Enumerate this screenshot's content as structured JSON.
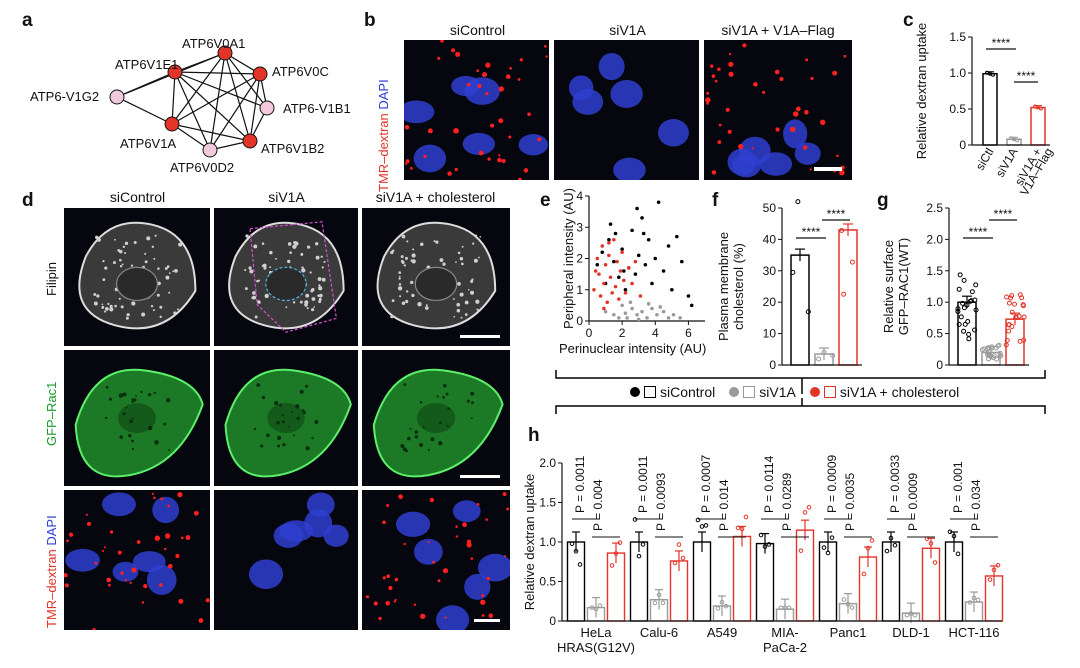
{
  "panels": {
    "a": {
      "label": "a",
      "nodes": [
        {
          "name": "ATP6V0A1",
          "kind": "core"
        },
        {
          "name": "ATP6V1E1",
          "kind": "core"
        },
        {
          "name": "ATP6V0C",
          "kind": "core"
        },
        {
          "name": "ATP6-V1G2",
          "kind": "peripheral"
        },
        {
          "name": "ATP6-V1B1",
          "kind": "peripheral"
        },
        {
          "name": "ATP6V1A",
          "kind": "core"
        },
        {
          "name": "ATP6V1B2",
          "kind": "core"
        },
        {
          "name": "ATP6V0D2",
          "kind": "peripheral"
        }
      ],
      "colors": {
        "core": "#e3342a",
        "peripheral": "#f2c9dc"
      }
    },
    "b": {
      "label": "b",
      "columns": [
        "siControl",
        "siV1A",
        "siV1A + V1A–Flag"
      ],
      "side_label_red": "TMR–dextran",
      "side_label_blue": "DAPI"
    },
    "c": {
      "label": "c"
    },
    "d": {
      "label": "d",
      "columns": [
        "siControl",
        "siV1A",
        "siV1A + cholesterol"
      ],
      "rows": [
        {
          "label": "Filipin",
          "color": "#222222"
        },
        {
          "label": "GFP–Rac1",
          "color": "#1a9a2a"
        },
        {
          "label_red": "TMR–dextran",
          "label_blue": "DAPI"
        }
      ]
    },
    "e": {
      "label": "e"
    },
    "f": {
      "label": "f"
    },
    "g": {
      "label": "g"
    },
    "h": {
      "label": "h"
    }
  },
  "legend": {
    "items": [
      {
        "label": "siControl",
        "color": "#000000"
      },
      {
        "label": "siV1A",
        "color": "#9a9a9a"
      },
      {
        "label": "siV1A + cholesterol",
        "color": "#e3342a"
      }
    ]
  },
  "chart_data": [
    {
      "id": "c",
      "type": "bar",
      "ylabel": "Relative dextran uptake",
      "ylim": [
        0,
        1.5
      ],
      "yticks": [
        "0",
        "0.5",
        "1.0",
        "1.5"
      ],
      "categories": [
        "siCtl",
        "siV1A",
        "siV1A +\nV1A–Flag"
      ],
      "values": [
        0.99,
        0.08,
        0.52
      ],
      "colors": [
        "#000000",
        "#9a9a9a",
        "#e3342a"
      ],
      "significance": [
        "****",
        "****"
      ]
    },
    {
      "id": "e",
      "type": "scatter",
      "xlabel": "Perinuclear intensity (AU)",
      "ylabel": "Peripheral intensity (AU)",
      "xlim": [
        0,
        7
      ],
      "ylim": [
        0,
        4
      ],
      "xticks": [
        "0",
        "2",
        "4",
        "6"
      ],
      "yticks": [
        "0",
        "1",
        "2",
        "3",
        "4"
      ],
      "series": [
        {
          "color": "#000000",
          "points": [
            [
              0.5,
              1.8
            ],
            [
              0.8,
              2.2
            ],
            [
              1.0,
              1.2
            ],
            [
              1.2,
              2.6
            ],
            [
              1.5,
              1.9
            ],
            [
              1.8,
              1.4
            ],
            [
              2.0,
              2.3
            ],
            [
              2.2,
              1.0
            ],
            [
              2.4,
              1.7
            ],
            [
              2.6,
              2.9
            ],
            [
              2.8,
              1.5
            ],
            [
              3.0,
              2.1
            ],
            [
              3.2,
              3.3
            ],
            [
              3.4,
              1.8
            ],
            [
              3.6,
              2.6
            ],
            [
              3.8,
              1.2
            ],
            [
              4.0,
              2.0
            ],
            [
              4.2,
              3.8
            ],
            [
              4.5,
              1.6
            ],
            [
              4.8,
              2.4
            ],
            [
              5.0,
              1.0
            ],
            [
              5.3,
              2.7
            ],
            [
              5.6,
              1.9
            ],
            [
              6.0,
              0.8
            ],
            [
              6.2,
              0.5
            ],
            [
              1.3,
              3.1
            ],
            [
              2.9,
              3.6
            ],
            [
              3.3,
              2.8
            ],
            [
              2.1,
              1.6
            ],
            [
              1.6,
              2.8
            ]
          ]
        },
        {
          "color": "#9a9a9a",
          "points": [
            [
              1.0,
              0.3
            ],
            [
              1.5,
              0.2
            ],
            [
              2.0,
              0.5
            ],
            [
              2.3,
              0.1
            ],
            [
              2.6,
              0.4
            ],
            [
              2.9,
              0.2
            ],
            [
              3.2,
              0.3
            ],
            [
              3.5,
              0.1
            ],
            [
              3.8,
              0.4
            ],
            [
              4.1,
              0.2
            ],
            [
              4.5,
              0.3
            ],
            [
              4.8,
              0.1
            ],
            [
              5.1,
              0.2
            ],
            [
              5.5,
              0.1
            ],
            [
              2.5,
              0.6
            ],
            [
              3.0,
              0.05
            ],
            [
              1.8,
              0.1
            ],
            [
              4.3,
              0.45
            ],
            [
              3.6,
              0.55
            ],
            [
              2.2,
              0.25
            ]
          ]
        },
        {
          "color": "#e3342a",
          "points": [
            [
              0.3,
              1.0
            ],
            [
              0.5,
              2.0
            ],
            [
              0.6,
              1.5
            ],
            [
              0.7,
              0.8
            ],
            [
              0.8,
              2.4
            ],
            [
              0.9,
              1.2
            ],
            [
              1.0,
              1.8
            ],
            [
              1.1,
              0.6
            ],
            [
              1.2,
              2.1
            ],
            [
              1.3,
              1.4
            ],
            [
              1.4,
              0.9
            ],
            [
              1.5,
              2.6
            ],
            [
              1.6,
              1.1
            ],
            [
              1.7,
              1.9
            ],
            [
              1.8,
              0.7
            ],
            [
              1.9,
              1.6
            ],
            [
              2.0,
              2.2
            ],
            [
              2.1,
              1.3
            ],
            [
              2.2,
              0.9
            ],
            [
              2.4,
              1.7
            ],
            [
              2.6,
              1.2
            ],
            [
              2.8,
              1.9
            ],
            [
              3.1,
              0.8
            ],
            [
              0.4,
              1.6
            ],
            [
              1.2,
              2.5
            ],
            [
              0.9,
              0.4
            ]
          ]
        }
      ]
    },
    {
      "id": "f",
      "type": "bar",
      "ylabel": "Plasma membrane\ncholesterol (%)",
      "ylim": [
        0,
        50
      ],
      "yticks": [
        "0",
        "10",
        "20",
        "30",
        "40",
        "50"
      ],
      "categories": [
        "siControl",
        "siV1A",
        "siV1A + cholesterol"
      ],
      "values": [
        35,
        3.5,
        43
      ],
      "colors": [
        "#000000",
        "#9a9a9a",
        "#e3342a"
      ],
      "significance": [
        "****",
        "****"
      ]
    },
    {
      "id": "g",
      "type": "bar",
      "ylabel": "Relative surface\nGFP–RAC1(WT)",
      "ylim": [
        0,
        2.5
      ],
      "yticks": [
        "0",
        "0.5",
        "1.0",
        "1.5",
        "2.0",
        "2.5"
      ],
      "categories": [
        "siControl",
        "siV1A",
        "siV1A + cholesterol"
      ],
      "values": [
        1.0,
        0.2,
        0.73
      ],
      "colors": [
        "#000000",
        "#9a9a9a",
        "#e3342a"
      ],
      "significance": [
        "****",
        "****"
      ]
    },
    {
      "id": "h",
      "type": "bar",
      "ylabel": "Relative dextran uptake",
      "ylim": [
        0,
        2.0
      ],
      "yticks": [
        "0",
        "0.5",
        "1.0",
        "1.5",
        "2.0"
      ],
      "categories": [
        "HeLa\nHRAS(G12V)",
        "Calu-6",
        "A549",
        "MIA-\nPaCa-2",
        "Panc1",
        "DLD-1",
        "HCT-116"
      ],
      "series": [
        {
          "name": "siControl",
          "color": "#000000",
          "values": [
            1.0,
            1.0,
            1.0,
            0.98,
            1.0,
            1.0,
            1.0
          ]
        },
        {
          "name": "siV1A",
          "color": "#9a9a9a",
          "values": [
            0.17,
            0.27,
            0.19,
            0.15,
            0.22,
            0.1,
            0.24
          ]
        },
        {
          "name": "siV1A + cholesterol",
          "color": "#e3342a",
          "values": [
            0.86,
            0.76,
            1.07,
            1.15,
            0.81,
            0.92,
            0.57
          ]
        }
      ],
      "pvalues": [
        [
          "P = 0.0011",
          "P = 0.004"
        ],
        [
          "P = 0.0011",
          "P = 0.0093"
        ],
        [
          "P = 0.0007",
          "P = 0.014"
        ],
        [
          "P = 0.0114",
          "P = 0.0289"
        ],
        [
          "P = 0.0009",
          "P = 0.0035"
        ],
        [
          "P = 0.0033",
          "P = 0.0009"
        ],
        [
          "P = 0.001",
          "P = 0.034"
        ]
      ]
    }
  ]
}
